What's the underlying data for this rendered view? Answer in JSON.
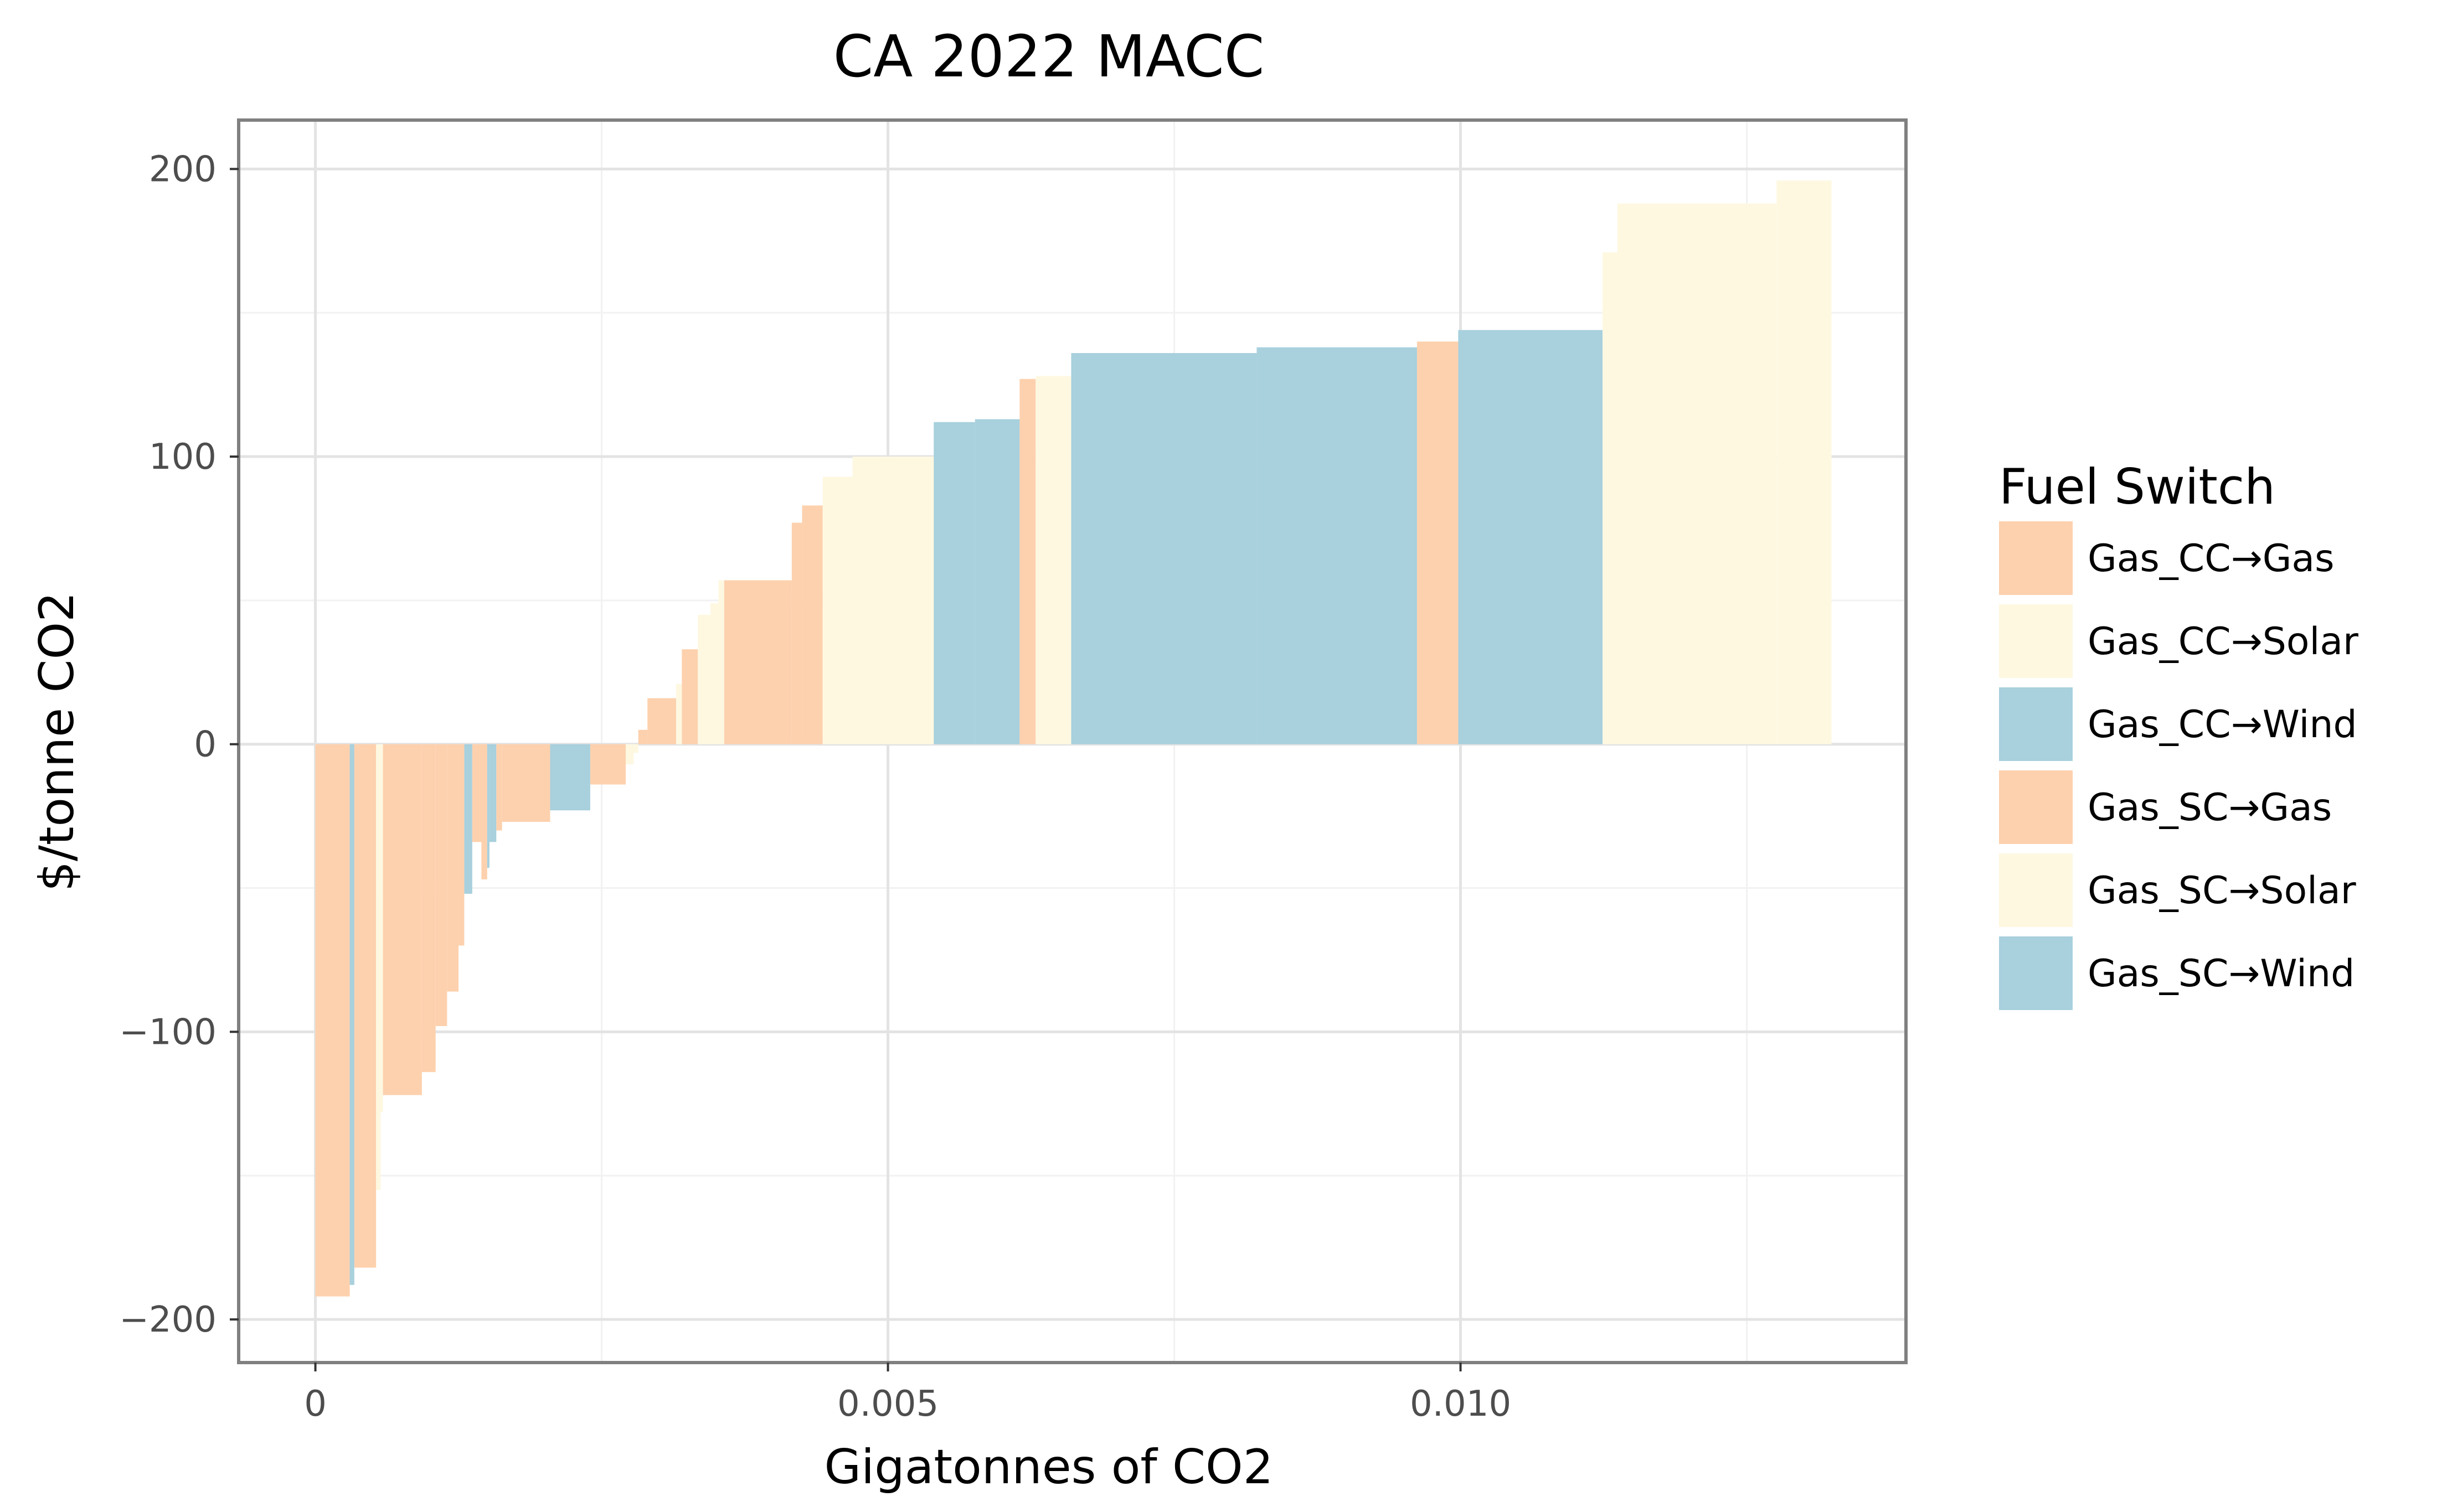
{
  "chart_data": {
    "type": "bar",
    "variant": "marginal-abatement-cost-curve",
    "title": "CA 2022 MACC",
    "xlabel": "Gigatonnes of CO2",
    "ylabel": "$/tonne CO2",
    "xlim": [
      -0.00067,
      0.01389
    ],
    "ylim": [
      -215,
      217
    ],
    "x_ticks": [
      0,
      0.005,
      0.01
    ],
    "x_tick_labels": [
      "0",
      "0.005",
      "0.010"
    ],
    "y_ticks": [
      -200,
      -100,
      0,
      100,
      200
    ],
    "y_tick_labels": [
      "−200",
      "−100",
      "0",
      "100",
      "200"
    ],
    "grid": true,
    "legend": {
      "title": "Fuel Switch",
      "placement": "right",
      "entries": [
        {
          "label": "Gas_CC→Gas",
          "color": "#fdd1ae"
        },
        {
          "label": "Gas_CC→Solar",
          "color": "#fef8e1"
        },
        {
          "label": "Gas_CC→Wind",
          "color": "#a8d0dd"
        },
        {
          "label": "Gas_SC→Gas",
          "color": "#fdd1ae"
        },
        {
          "label": "Gas_SC→Solar",
          "color": "#fef8e1"
        },
        {
          "label": "Gas_SC→Wind",
          "color": "#a8d0dd"
        }
      ]
    },
    "colors": {
      "gas": "#fdd1ae",
      "solar": "#fef8e1",
      "wind": "#a8d0dd"
    },
    "fields": [
      "x_start",
      "x_end",
      "cost",
      "kind"
    ],
    "bars": [
      [
        0.0,
        0.0003,
        -192,
        "gas"
      ],
      [
        0.0003,
        0.00034,
        -188,
        "wind"
      ],
      [
        0.00034,
        0.00053,
        -182,
        "gas"
      ],
      [
        0.00053,
        0.00057,
        -155,
        "solar"
      ],
      [
        0.00057,
        0.00059,
        -128,
        "solar"
      ],
      [
        0.00059,
        0.00093,
        -122,
        "gas"
      ],
      [
        0.00093,
        0.00105,
        -114,
        "gas"
      ],
      [
        0.00105,
        0.00115,
        -98,
        "gas"
      ],
      [
        0.00115,
        0.00125,
        -86,
        "gas"
      ],
      [
        0.00125,
        0.0013,
        -70,
        "gas"
      ],
      [
        0.0013,
        0.00137,
        -52,
        "wind"
      ],
      [
        0.00137,
        0.00145,
        -34,
        "gas"
      ],
      [
        0.00145,
        0.0015,
        -47,
        "gas"
      ],
      [
        0.0015,
        0.00152,
        -43,
        "wind"
      ],
      [
        0.00152,
        0.00158,
        -34,
        "wind"
      ],
      [
        0.00158,
        0.00163,
        -30,
        "gas"
      ],
      [
        0.00163,
        0.00205,
        -27,
        "gas"
      ],
      [
        0.00205,
        0.0024,
        -23,
        "wind"
      ],
      [
        0.0024,
        0.00271,
        -14,
        "gas"
      ],
      [
        0.00271,
        0.00278,
        -7,
        "solar"
      ],
      [
        0.00278,
        0.00282,
        -3,
        "solar"
      ],
      [
        0.00282,
        0.0029,
        5,
        "gas"
      ],
      [
        0.0029,
        0.00315,
        16,
        "gas"
      ],
      [
        0.00315,
        0.0032,
        21,
        "solar"
      ],
      [
        0.0032,
        0.00334,
        33,
        "gas"
      ],
      [
        0.00334,
        0.00345,
        45,
        "solar"
      ],
      [
        0.00345,
        0.00352,
        49,
        "solar"
      ],
      [
        0.00352,
        0.00357,
        57,
        "solar"
      ],
      [
        0.00357,
        0.00416,
        57,
        "gas"
      ],
      [
        0.00416,
        0.00425,
        77,
        "gas"
      ],
      [
        0.00425,
        0.00443,
        83,
        "gas"
      ],
      [
        0.00443,
        0.00469,
        93,
        "solar"
      ],
      [
        0.00469,
        0.0054,
        100,
        "solar"
      ],
      [
        0.0054,
        0.00576,
        112,
        "wind"
      ],
      [
        0.00576,
        0.00615,
        113,
        "wind"
      ],
      [
        0.00615,
        0.00629,
        127,
        "gas"
      ],
      [
        0.00629,
        0.0066,
        128,
        "solar"
      ],
      [
        0.0066,
        0.00822,
        136,
        "wind"
      ],
      [
        0.00822,
        0.00962,
        138,
        "wind"
      ],
      [
        0.00962,
        0.00998,
        140,
        "gas"
      ],
      [
        0.00998,
        0.01124,
        144,
        "wind"
      ],
      [
        0.01124,
        0.01137,
        171,
        "solar"
      ],
      [
        0.01137,
        0.01276,
        188,
        "solar"
      ],
      [
        0.01276,
        0.01324,
        196,
        "solar"
      ]
    ]
  }
}
